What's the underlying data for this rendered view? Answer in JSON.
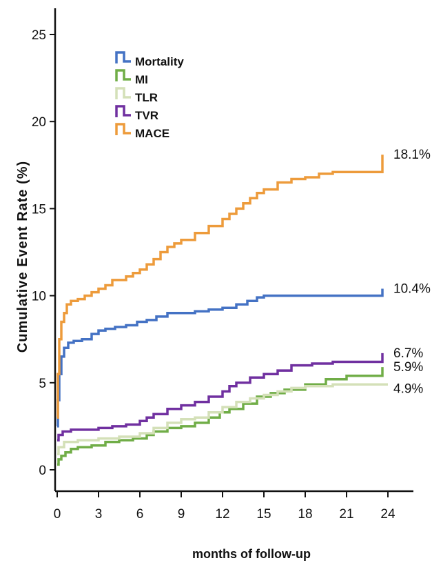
{
  "chart_data": {
    "type": "line",
    "step": true,
    "title": "",
    "xlabel": "months of follow-up",
    "ylabel": "Cumulative Event Rate (%)",
    "xlim": [
      0,
      24
    ],
    "ylim": [
      0,
      25
    ],
    "xticks": [
      0,
      3,
      6,
      9,
      12,
      15,
      18,
      21,
      24
    ],
    "yticks": [
      0,
      5,
      10,
      15,
      20,
      25
    ],
    "grid": false,
    "legend_position": "top-left",
    "series": [
      {
        "name": "Mortality",
        "color": "#4472c4",
        "end_label": "10.4%",
        "x": [
          0,
          0.05,
          0.15,
          0.3,
          0.5,
          0.8,
          1.2,
          1.8,
          2.5,
          3.0,
          3.5,
          4.2,
          5.0,
          5.8,
          6.5,
          7.2,
          8.0,
          9.0,
          10.0,
          11.0,
          12.0,
          13.0,
          13.8,
          14.5,
          15.0,
          16.0,
          18.0,
          20.0,
          22.0,
          23.5,
          23.6
        ],
        "y": [
          2.5,
          4.0,
          5.5,
          6.5,
          7.0,
          7.3,
          7.4,
          7.5,
          7.8,
          8.0,
          8.1,
          8.2,
          8.3,
          8.5,
          8.6,
          8.8,
          9.0,
          9.0,
          9.1,
          9.2,
          9.3,
          9.5,
          9.7,
          9.9,
          10.0,
          10.0,
          10.0,
          10.0,
          10.0,
          10.0,
          10.4
        ]
      },
      {
        "name": "MI",
        "color": "#70ad47",
        "end_label": "5.9%",
        "x": [
          0,
          0.1,
          0.3,
          0.6,
          1.0,
          1.5,
          2.5,
          3.5,
          4.5,
          5.5,
          6.5,
          7.0,
          8.0,
          9.0,
          10.0,
          11.0,
          11.8,
          12.5,
          13.5,
          14.5,
          15.5,
          16.5,
          18.0,
          19.5,
          21.0,
          22.5,
          23.6
        ],
        "y": [
          0.3,
          0.6,
          0.8,
          1.0,
          1.2,
          1.3,
          1.4,
          1.6,
          1.7,
          1.8,
          2.0,
          2.2,
          2.4,
          2.5,
          2.7,
          3.0,
          3.3,
          3.5,
          3.8,
          4.2,
          4.4,
          4.6,
          4.9,
          5.2,
          5.4,
          5.4,
          5.9
        ]
      },
      {
        "name": "TLR",
        "color": "#d4e0b8",
        "end_label": "4.9%",
        "x": [
          0,
          0.1,
          0.5,
          1.5,
          3.0,
          4.5,
          6.0,
          7.0,
          8.0,
          9.0,
          10.0,
          11.0,
          12.0,
          13.0,
          14.0,
          15.0,
          16.0,
          17.0,
          18.0,
          20.0,
          22.0,
          24.0
        ],
        "y": [
          0.9,
          1.3,
          1.6,
          1.7,
          1.8,
          1.9,
          2.1,
          2.4,
          2.7,
          2.9,
          3.0,
          3.3,
          3.6,
          3.9,
          4.1,
          4.3,
          4.5,
          4.7,
          4.8,
          4.9,
          4.9,
          4.9
        ]
      },
      {
        "name": "TVR",
        "color": "#7030a0",
        "end_label": "6.7%",
        "x": [
          0,
          0.1,
          0.4,
          1.0,
          2.0,
          3.0,
          4.0,
          5.0,
          6.0,
          6.5,
          7.0,
          8.0,
          9.0,
          10.0,
          11.0,
          12.0,
          12.5,
          13.0,
          14.0,
          15.0,
          16.0,
          17.0,
          18.5,
          20.0,
          22.0,
          23.6
        ],
        "y": [
          1.7,
          2.0,
          2.2,
          2.3,
          2.3,
          2.4,
          2.5,
          2.6,
          2.8,
          3.0,
          3.2,
          3.5,
          3.7,
          3.9,
          4.2,
          4.5,
          4.8,
          5.0,
          5.3,
          5.5,
          5.7,
          6.0,
          6.1,
          6.2,
          6.2,
          6.7
        ]
      },
      {
        "name": "MACE",
        "color": "#ed9b3b",
        "end_label": "18.1%",
        "x": [
          0,
          0.05,
          0.15,
          0.3,
          0.5,
          0.7,
          1.0,
          1.5,
          2.0,
          2.5,
          3.0,
          3.5,
          4.0,
          5.0,
          5.5,
          6.0,
          6.5,
          7.0,
          7.5,
          8.0,
          8.5,
          9.0,
          10.0,
          11.0,
          12.0,
          12.5,
          13.0,
          13.5,
          14.0,
          14.5,
          15.0,
          16.0,
          17.0,
          18.0,
          19.0,
          20.0,
          21.0,
          22.0,
          23.5,
          23.6
        ],
        "y": [
          3.0,
          5.5,
          7.5,
          8.5,
          9.0,
          9.5,
          9.7,
          9.8,
          10.0,
          10.2,
          10.4,
          10.6,
          10.9,
          11.1,
          11.3,
          11.5,
          11.8,
          12.1,
          12.5,
          12.8,
          13.0,
          13.2,
          13.6,
          14.0,
          14.4,
          14.7,
          15.0,
          15.3,
          15.6,
          15.9,
          16.1,
          16.5,
          16.7,
          16.8,
          17.0,
          17.1,
          17.1,
          17.1,
          17.1,
          18.1
        ]
      }
    ]
  }
}
